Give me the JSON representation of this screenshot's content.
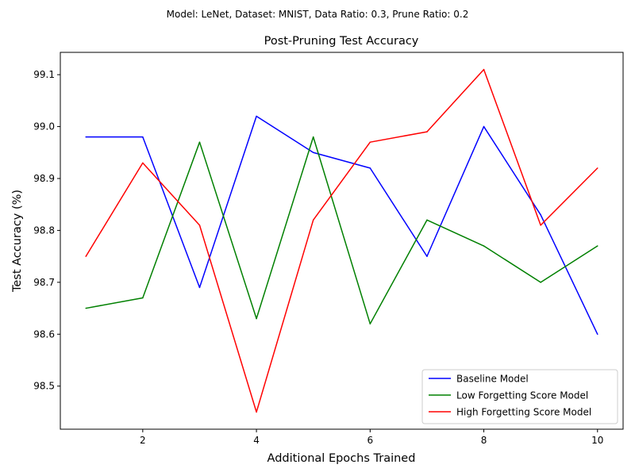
{
  "chart_data": {
    "type": "line",
    "suptitle": "Model: LeNet, Dataset: MNIST, Data Ratio: 0.3, Prune Ratio: 0.2",
    "title": "Post-Pruning Test Accuracy",
    "xlabel": "Additional Epochs Trained",
    "ylabel": "Test Accuracy (%)",
    "xlim": [
      0.55,
      10.45
    ],
    "ylim": [
      98.417,
      99.143
    ],
    "xticks": [
      2,
      4,
      6,
      8,
      10
    ],
    "xtick_labels": [
      "2",
      "4",
      "6",
      "8",
      "10"
    ],
    "yticks": [
      98.5,
      98.6,
      98.7,
      98.8,
      98.9,
      99.0,
      99.1
    ],
    "ytick_labels": [
      "98.5",
      "98.6",
      "98.7",
      "98.8",
      "98.9",
      "99.0",
      "99.1"
    ],
    "grid": false,
    "legend_position": "lower right",
    "x": [
      1,
      2,
      3,
      4,
      5,
      6,
      7,
      8,
      9,
      10
    ],
    "series": [
      {
        "name": "Baseline Model",
        "color": "#0000ff",
        "values": [
          98.98,
          98.98,
          98.69,
          99.02,
          98.95,
          98.92,
          98.75,
          99.0,
          98.83,
          98.6
        ]
      },
      {
        "name": "Low Forgetting Score Model",
        "color": "#008000",
        "values": [
          98.65,
          98.67,
          98.97,
          98.63,
          98.98,
          98.62,
          98.82,
          98.77,
          98.7,
          98.77
        ]
      },
      {
        "name": "High Forgetting Score Model",
        "color": "#ff0000",
        "values": [
          98.75,
          98.93,
          98.81,
          98.45,
          98.82,
          98.97,
          98.99,
          99.11,
          98.81,
          98.92
        ]
      }
    ]
  }
}
